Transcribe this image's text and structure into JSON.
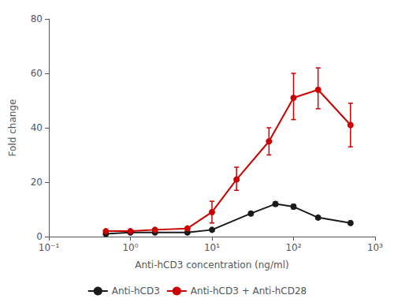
{
  "chart_data": {
    "type": "line",
    "xlabel": "Anti-hCD3 concentration (ng/ml)",
    "ylabel": "Fold change",
    "log": "x",
    "grid": false,
    "legend": "bottom",
    "marker": "circle",
    "xlim": [
      0.1,
      1000
    ],
    "xticks": [
      {
        "value": 0.1,
        "label": "10⁻¹"
      },
      {
        "value": 1,
        "label": "10⁰"
      },
      {
        "value": 10,
        "label": "10¹"
      },
      {
        "value": 100,
        "label": "10²"
      },
      {
        "value": 1000,
        "label": "10³"
      }
    ],
    "ylim": [
      0,
      80
    ],
    "yticks": [
      0,
      20,
      40,
      60,
      80
    ],
    "series": [
      {
        "name": "Anti-hCD3",
        "color": "#1a1a1a",
        "x": [
          0.5,
          1.0,
          2.0,
          5.0,
          10.0,
          30.0,
          60.0,
          100.0,
          200.0,
          500.0
        ],
        "values": [
          1.0,
          1.5,
          1.5,
          1.5,
          2.5,
          8.5,
          12.0,
          11.0,
          7.0,
          5.0
        ],
        "yerr_lo": [
          0.3,
          0.3,
          0.3,
          0.3,
          0.4,
          0.6,
          0.8,
          0.8,
          0.6,
          0.4
        ],
        "yerr_hi": [
          0.3,
          0.3,
          0.3,
          0.3,
          0.4,
          0.6,
          0.8,
          0.8,
          0.6,
          0.4
        ]
      },
      {
        "name": "Anti-hCD3 + Anti-hCD28",
        "color": "#cc0000",
        "x": [
          0.5,
          1.0,
          2.0,
          5.0,
          10.0,
          20.0,
          50.0,
          100.0,
          200.0,
          500.0
        ],
        "values": [
          2.0,
          2.0,
          2.5,
          3.0,
          9.0,
          21.0,
          35.0,
          51.0,
          54.0,
          41.0
        ],
        "yerr_lo": [
          0.3,
          0.3,
          0.4,
          0.5,
          4.0,
          4.0,
          5.0,
          8.0,
          7.0,
          8.0
        ],
        "yerr_hi": [
          0.3,
          0.3,
          0.4,
          0.5,
          4.0,
          4.5,
          5.0,
          9.0,
          8.0,
          8.0
        ]
      }
    ]
  }
}
